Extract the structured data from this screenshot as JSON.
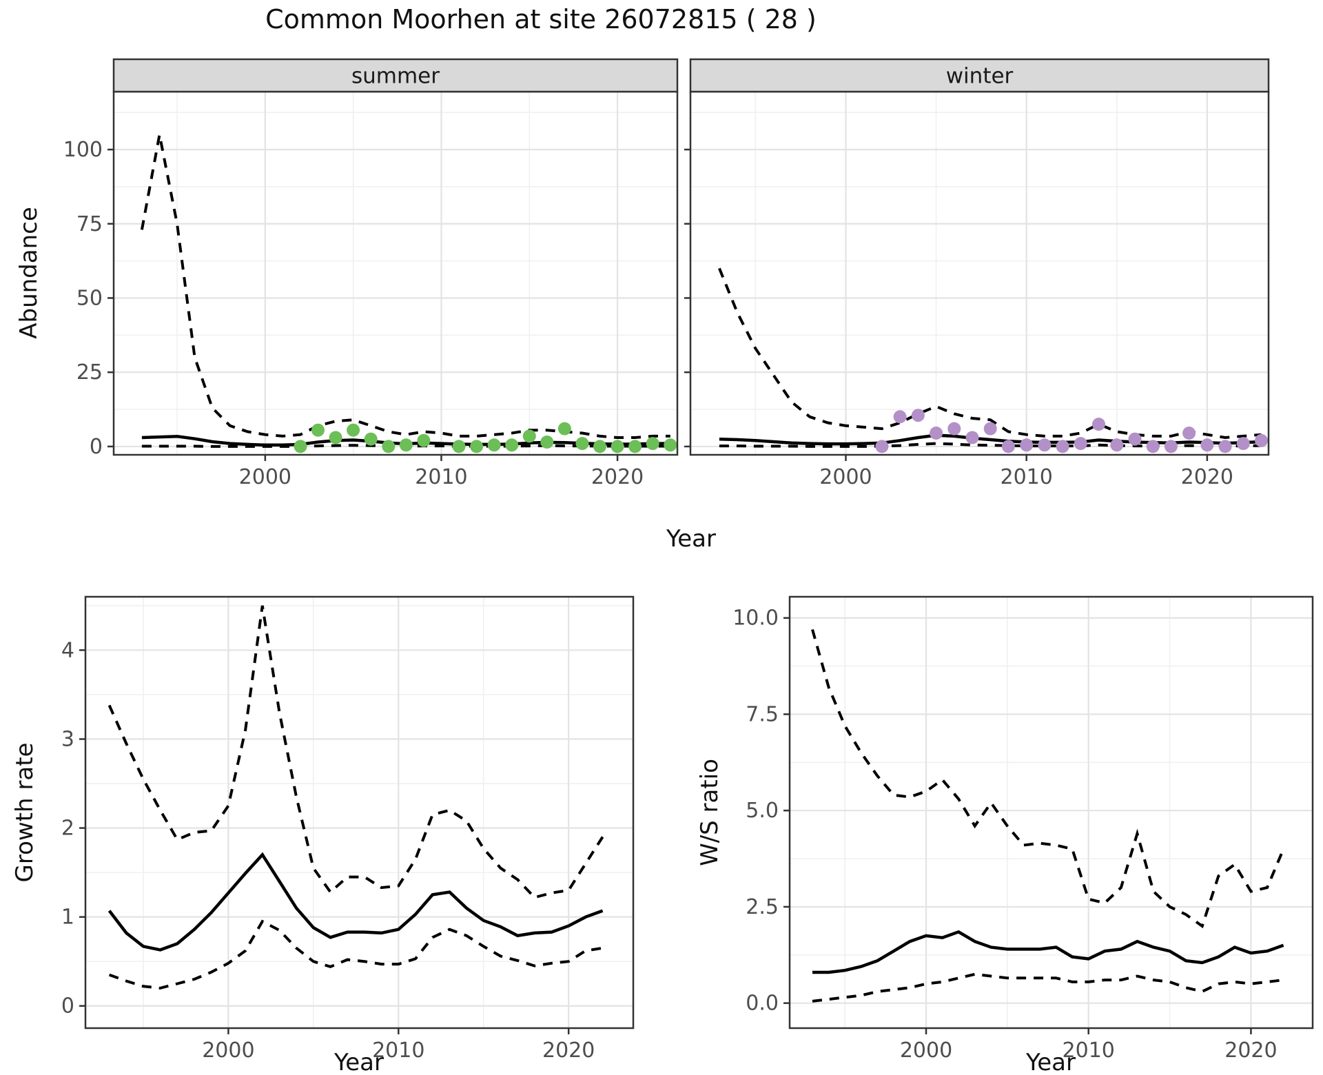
{
  "title": "Common Moorhen at site 26072815 ( 28 )",
  "labels": {
    "abundance_y": "Abundance",
    "growth_y": "Growth rate",
    "ws_y": "W/S ratio",
    "year_x_top": "Year",
    "year_x_growth": "Year",
    "year_x_ws": "Year"
  },
  "facets": [
    "summer",
    "winter"
  ],
  "colors": {
    "summer_point": "#6cbe57",
    "winter_point": "#b390c8",
    "line": "#000000",
    "strip_bg": "#d9d9d9",
    "strip_text": "#1a1a1a",
    "grid_major": "#e3e3e3",
    "grid_minor": "#f0f0f0",
    "panel_border": "#333333",
    "tick_mark": "#333333",
    "tick_label": "#4d4d4d",
    "panel_bg": "#ffffff"
  },
  "chart_data": [
    {
      "id": "abundance_summer",
      "type": "line",
      "facet": "summer",
      "ylabel": "Abundance",
      "xlabel": "Year",
      "xlim": [
        1991.4,
        2023.4
      ],
      "ylim": [
        -2.8,
        119.5
      ],
      "xticks": [
        2000,
        2010,
        2020
      ],
      "xtick_labels": [
        "2000",
        "2010",
        "2020"
      ],
      "yticks": [
        0,
        25,
        50,
        75,
        100
      ],
      "ytick_labels": [
        "0",
        "25",
        "50",
        "75",
        "100"
      ],
      "grid": true,
      "legend": "none",
      "x": [
        1993,
        1994,
        1995,
        1996,
        1997,
        1998,
        1999,
        2000,
        2001,
        2002,
        2003,
        2004,
        2005,
        2006,
        2007,
        2008,
        2009,
        2010,
        2011,
        2012,
        2013,
        2014,
        2015,
        2016,
        2017,
        2018,
        2019,
        2020,
        2021,
        2022,
        2023
      ],
      "series": [
        {
          "name": "upper_ci",
          "style": "dashed",
          "values": [
            73,
            105,
            75,
            30,
            13,
            7,
            5,
            4,
            3.5,
            4,
            7,
            8.5,
            9,
            7,
            5,
            4,
            5,
            4.5,
            3.5,
            3.5,
            4,
            4.5,
            5.5,
            5.5,
            5,
            4.5,
            3.5,
            3,
            3,
            3.5,
            3.5
          ]
        },
        {
          "name": "median",
          "style": "solid",
          "values": [
            3,
            3.2,
            3.4,
            2.6,
            1.6,
            1,
            0.7,
            0.5,
            0.5,
            0.7,
            1.5,
            2,
            2.2,
            1.8,
            1.2,
            0.9,
            1.2,
            1,
            0.8,
            0.7,
            0.7,
            0.8,
            1.2,
            1.4,
            1.3,
            1.1,
            0.9,
            0.8,
            0.8,
            1,
            1
          ]
        },
        {
          "name": "lower_ci",
          "style": "dashed",
          "values": [
            0.1,
            0.1,
            0.1,
            0.1,
            0,
            0,
            0,
            0,
            0,
            0,
            0.2,
            0.3,
            0.4,
            0.3,
            0.2,
            0.1,
            0.2,
            0.2,
            0.1,
            0.1,
            0.1,
            0.1,
            0.2,
            0.3,
            0.2,
            0.2,
            0.1,
            0.1,
            0.1,
            0.1,
            0.1
          ]
        }
      ],
      "points": {
        "name": "observed_counts",
        "color_key": "summer_point",
        "x": [
          2002,
          2003,
          2004,
          2005,
          2006,
          2007,
          2008,
          2009,
          2011,
          2012,
          2013,
          2014,
          2015,
          2016,
          2017,
          2018,
          2019,
          2020,
          2021,
          2022,
          2023
        ],
        "y": [
          0,
          5.5,
          3,
          5.5,
          2.5,
          0,
          0.5,
          2,
          0,
          0,
          0.5,
          0.5,
          3.5,
          1.5,
          6,
          1,
          0,
          0,
          0,
          1,
          0.5
        ]
      }
    },
    {
      "id": "abundance_winter",
      "type": "line",
      "facet": "winter",
      "ylabel": "Abundance",
      "xlabel": "Year",
      "xlim": [
        1991.4,
        2023.4
      ],
      "ylim": [
        -2.8,
        119.5
      ],
      "xticks": [
        2000,
        2010,
        2020
      ],
      "xtick_labels": [
        "2000",
        "2010",
        "2020"
      ],
      "yticks": [
        0,
        25,
        50,
        75,
        100
      ],
      "ytick_labels": [
        "0",
        "25",
        "50",
        "75",
        "100"
      ],
      "grid": true,
      "legend": "none",
      "x": [
        1993,
        1994,
        1995,
        1996,
        1997,
        1998,
        1999,
        2000,
        2001,
        2002,
        2003,
        2004,
        2005,
        2006,
        2007,
        2008,
        2009,
        2010,
        2011,
        2012,
        2013,
        2014,
        2015,
        2016,
        2017,
        2018,
        2019,
        2020,
        2021,
        2022,
        2023
      ],
      "series": [
        {
          "name": "upper_ci",
          "style": "dashed",
          "values": [
            60,
            45,
            33,
            24,
            15,
            10,
            8,
            7,
            6.5,
            6,
            8,
            11,
            13.5,
            11,
            9.5,
            9,
            5,
            4,
            3.5,
            3.5,
            4.5,
            7.5,
            5,
            4,
            3.5,
            3.5,
            5,
            4,
            3,
            3.5,
            4
          ]
        },
        {
          "name": "median",
          "style": "solid",
          "values": [
            2.5,
            2.3,
            2,
            1.6,
            1.2,
            1,
            0.9,
            0.9,
            1,
            1.2,
            2,
            3,
            3.8,
            3.5,
            2.8,
            2.3,
            1.8,
            1.5,
            1.4,
            1.4,
            1.5,
            2.2,
            1.8,
            1.5,
            1.3,
            1.2,
            1.5,
            1.3,
            1.1,
            1.3,
            1.6
          ]
        },
        {
          "name": "lower_ci",
          "style": "dashed",
          "values": [
            0.2,
            0.2,
            0.1,
            0.1,
            0.1,
            0,
            0,
            0,
            0,
            0.1,
            0.3,
            0.7,
            1,
            0.8,
            0.5,
            0.4,
            0.3,
            0.2,
            0.2,
            0.2,
            0.2,
            0.5,
            0.3,
            0.2,
            0.2,
            0.2,
            0.3,
            0.2,
            0.2,
            0.2,
            0.3
          ]
        }
      ],
      "points": {
        "name": "observed_counts",
        "color_key": "winter_point",
        "x": [
          2002,
          2003,
          2004,
          2005,
          2006,
          2007,
          2008,
          2009,
          2010,
          2011,
          2012,
          2013,
          2014,
          2015,
          2016,
          2017,
          2018,
          2019,
          2020,
          2021,
          2022,
          2023
        ],
        "y": [
          0,
          10,
          10.5,
          4.5,
          6,
          3,
          6,
          0,
          0.5,
          0.5,
          0,
          1,
          7.5,
          0.5,
          2.5,
          0,
          0,
          4.5,
          0.5,
          0,
          1,
          2
        ]
      }
    },
    {
      "id": "growth_rate",
      "type": "line",
      "facet": null,
      "ylabel": "Growth rate",
      "xlabel": "Year",
      "xlim": [
        1991.6,
        2023.8
      ],
      "ylim": [
        -0.25,
        4.6
      ],
      "xticks": [
        2000,
        2010,
        2020
      ],
      "xtick_labels": [
        "2000",
        "2010",
        "2020"
      ],
      "yticks": [
        0,
        1,
        2,
        3,
        4
      ],
      "ytick_labels": [
        "0",
        "1",
        "2",
        "3",
        "4"
      ],
      "grid": true,
      "legend": "none",
      "x": [
        1993,
        1994,
        1995,
        1996,
        1997,
        1998,
        1999,
        2000,
        2001,
        2002,
        2003,
        2004,
        2005,
        2006,
        2007,
        2008,
        2009,
        2010,
        2011,
        2012,
        2013,
        2014,
        2015,
        2016,
        2017,
        2018,
        2019,
        2020,
        2021,
        2022
      ],
      "series": [
        {
          "name": "upper_ci",
          "style": "dashed",
          "values": [
            3.38,
            2.95,
            2.55,
            2.2,
            1.87,
            1.95,
            1.97,
            2.25,
            3.1,
            4.5,
            3.3,
            2.35,
            1.55,
            1.28,
            1.45,
            1.45,
            1.33,
            1.35,
            1.65,
            2.15,
            2.2,
            2.08,
            1.77,
            1.55,
            1.42,
            1.22,
            1.27,
            1.3,
            1.6,
            1.9
          ]
        },
        {
          "name": "median",
          "style": "solid",
          "values": [
            1.07,
            0.82,
            0.67,
            0.63,
            0.7,
            0.86,
            1.05,
            1.27,
            1.49,
            1.7,
            1.4,
            1.1,
            0.88,
            0.77,
            0.83,
            0.83,
            0.82,
            0.86,
            1.03,
            1.25,
            1.28,
            1.1,
            0.96,
            0.89,
            0.79,
            0.82,
            0.83,
            0.9,
            1,
            1.07
          ]
        },
        {
          "name": "lower_ci",
          "style": "dashed",
          "values": [
            0.35,
            0.28,
            0.22,
            0.2,
            0.25,
            0.3,
            0.38,
            0.48,
            0.62,
            0.95,
            0.85,
            0.65,
            0.5,
            0.44,
            0.52,
            0.5,
            0.47,
            0.47,
            0.53,
            0.77,
            0.86,
            0.79,
            0.67,
            0.56,
            0.51,
            0.45,
            0.48,
            0.5,
            0.62,
            0.65
          ]
        }
      ],
      "points": null
    },
    {
      "id": "ws_ratio",
      "type": "line",
      "facet": null,
      "ylabel": "W/S ratio",
      "xlabel": "Year",
      "xlim": [
        1991.6,
        2023.8
      ],
      "ylim": [
        -0.65,
        10.55
      ],
      "xticks": [
        2000,
        2010,
        2020
      ],
      "xtick_labels": [
        "2000",
        "2010",
        "2020"
      ],
      "yticks": [
        0,
        2.5,
        5,
        7.5,
        10
      ],
      "ytick_labels": [
        "0.0",
        "2.5",
        "5.0",
        "7.5",
        "10.0"
      ],
      "grid": true,
      "legend": "none",
      "x": [
        1993,
        1994,
        1995,
        1996,
        1997,
        1998,
        1999,
        2000,
        2001,
        2002,
        2003,
        2004,
        2005,
        2006,
        2007,
        2008,
        2009,
        2010,
        2011,
        2012,
        2013,
        2014,
        2015,
        2016,
        2017,
        2018,
        2019,
        2020,
        2021,
        2022
      ],
      "series": [
        {
          "name": "upper_ci",
          "style": "dashed",
          "values": [
            9.7,
            8.2,
            7.2,
            6.5,
            5.9,
            5.4,
            5.35,
            5.5,
            5.8,
            5.3,
            4.6,
            5.2,
            4.6,
            4.1,
            4.15,
            4.1,
            4,
            2.7,
            2.6,
            3,
            4.4,
            2.9,
            2.5,
            2.3,
            2,
            3.3,
            3.6,
            2.9,
            3,
            4
          ]
        },
        {
          "name": "median",
          "style": "solid",
          "values": [
            0.8,
            0.8,
            0.85,
            0.95,
            1.1,
            1.35,
            1.6,
            1.75,
            1.7,
            1.85,
            1.6,
            1.45,
            1.4,
            1.4,
            1.4,
            1.45,
            1.2,
            1.15,
            1.35,
            1.4,
            1.6,
            1.45,
            1.35,
            1.1,
            1.05,
            1.2,
            1.45,
            1.3,
            1.35,
            1.5
          ]
        },
        {
          "name": "lower_ci",
          "style": "dashed",
          "values": [
            0.05,
            0.1,
            0.15,
            0.2,
            0.3,
            0.35,
            0.4,
            0.5,
            0.55,
            0.65,
            0.75,
            0.7,
            0.65,
            0.65,
            0.65,
            0.65,
            0.55,
            0.55,
            0.6,
            0.6,
            0.7,
            0.6,
            0.55,
            0.4,
            0.3,
            0.5,
            0.55,
            0.5,
            0.55,
            0.6
          ]
        }
      ],
      "points": null
    }
  ]
}
